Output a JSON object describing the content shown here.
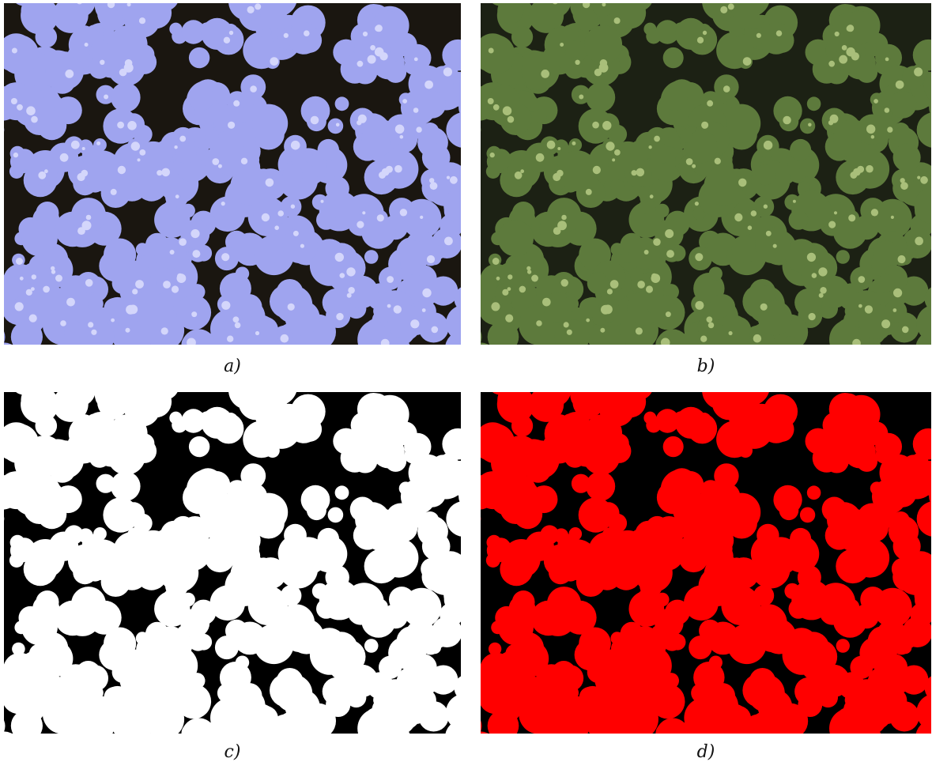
{
  "figure": {
    "captions": [
      "a)",
      "b)",
      "c)",
      "d)"
    ]
  }
}
